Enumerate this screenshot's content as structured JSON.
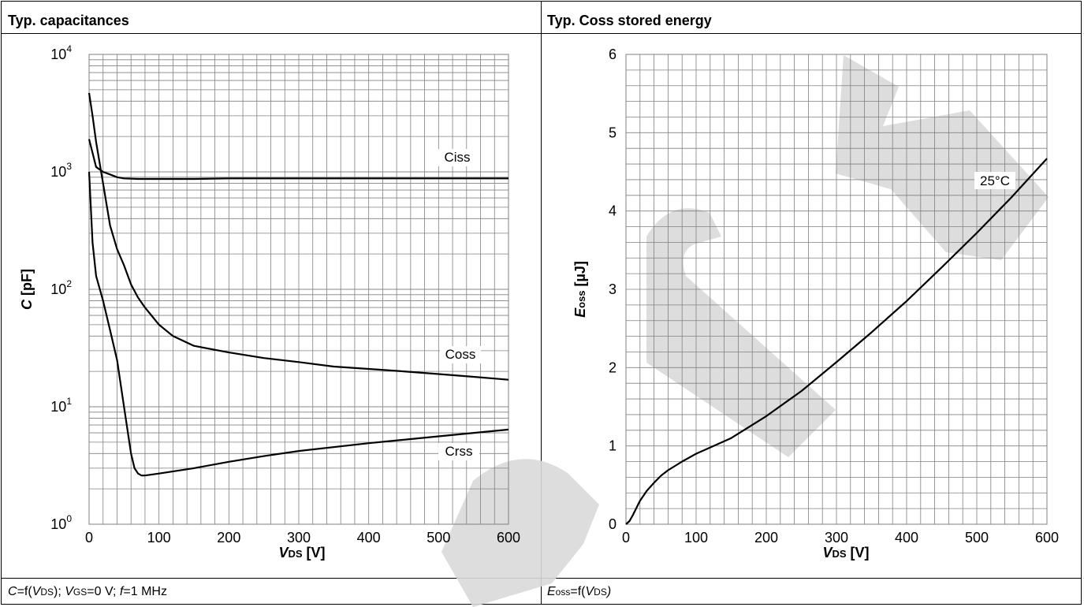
{
  "panels": {
    "left": {
      "title": "Typ. capacitances",
      "caption_parts": [
        "C",
        "=f(",
        "V",
        "DS",
        "); ",
        "V",
        "GS",
        "=0 V; ",
        "f",
        "=1 MHz"
      ]
    },
    "right": {
      "title": "Typ. Coss stored energy",
      "caption_parts": [
        "E",
        "oss",
        "=f(",
        "V",
        "DS",
        ")"
      ]
    }
  },
  "chart_data": [
    {
      "type": "line",
      "title": "Typ. capacitances",
      "xlabel": "VDS [V]",
      "ylabel": "C [pF]",
      "xlim": [
        0,
        600
      ],
      "ylim": [
        1,
        10000
      ],
      "y_scale": "log",
      "grid": true,
      "x_ticks": [
        "0",
        "100",
        "200",
        "300",
        "400",
        "500",
        "600"
      ],
      "y_ticks": [
        "10^0",
        "10^1",
        "10^2",
        "10^3",
        "10^4"
      ],
      "series": [
        {
          "name": "Ciss",
          "x": [
            0,
            10,
            20,
            30,
            40,
            50,
            70,
            100,
            150,
            200,
            300,
            400,
            500,
            600
          ],
          "values": [
            1900,
            1100,
            1000,
            950,
            900,
            880,
            870,
            870,
            870,
            880,
            880,
            880,
            880,
            880
          ]
        },
        {
          "name": "Coss",
          "x": [
            0,
            5,
            10,
            20,
            30,
            40,
            50,
            60,
            70,
            80,
            100,
            120,
            150,
            200,
            250,
            300,
            350,
            400,
            450,
            500,
            550,
            600
          ],
          "values": [
            4700,
            3000,
            1800,
            800,
            350,
            220,
            160,
            110,
            85,
            70,
            50,
            40,
            33,
            29,
            26,
            24,
            22,
            21,
            20,
            19,
            18,
            17
          ]
        },
        {
          "name": "Crss",
          "x": [
            0,
            5,
            10,
            20,
            30,
            40,
            50,
            60,
            65,
            70,
            75,
            80,
            100,
            150,
            200,
            250,
            300,
            400,
            500,
            600
          ],
          "values": [
            1000,
            250,
            130,
            80,
            45,
            25,
            10,
            4,
            3,
            2.7,
            2.6,
            2.6,
            2.7,
            3.0,
            3.4,
            3.8,
            4.2,
            4.9,
            5.6,
            6.4
          ]
        }
      ]
    },
    {
      "type": "line",
      "title": "Typ. Coss stored energy",
      "xlabel": "VDS [V]",
      "ylabel": "Eoss [µJ]",
      "xlim": [
        0,
        600
      ],
      "ylim": [
        0,
        6
      ],
      "grid": true,
      "x_ticks": [
        "0",
        "100",
        "200",
        "300",
        "400",
        "500",
        "600"
      ],
      "y_ticks": [
        "0",
        "1",
        "2",
        "3",
        "4",
        "5",
        "6"
      ],
      "series": [
        {
          "name": "25°C",
          "x": [
            0,
            5,
            10,
            20,
            30,
            40,
            50,
            60,
            80,
            100,
            150,
            200,
            250,
            300,
            350,
            400,
            450,
            500,
            550,
            600
          ],
          "values": [
            0,
            0.04,
            0.12,
            0.3,
            0.43,
            0.53,
            0.62,
            0.69,
            0.8,
            0.9,
            1.1,
            1.38,
            1.7,
            2.07,
            2.45,
            2.85,
            3.28,
            3.72,
            4.18,
            4.67
          ]
        }
      ]
    }
  ],
  "watermark": {
    "color": "#d9d9d9"
  }
}
